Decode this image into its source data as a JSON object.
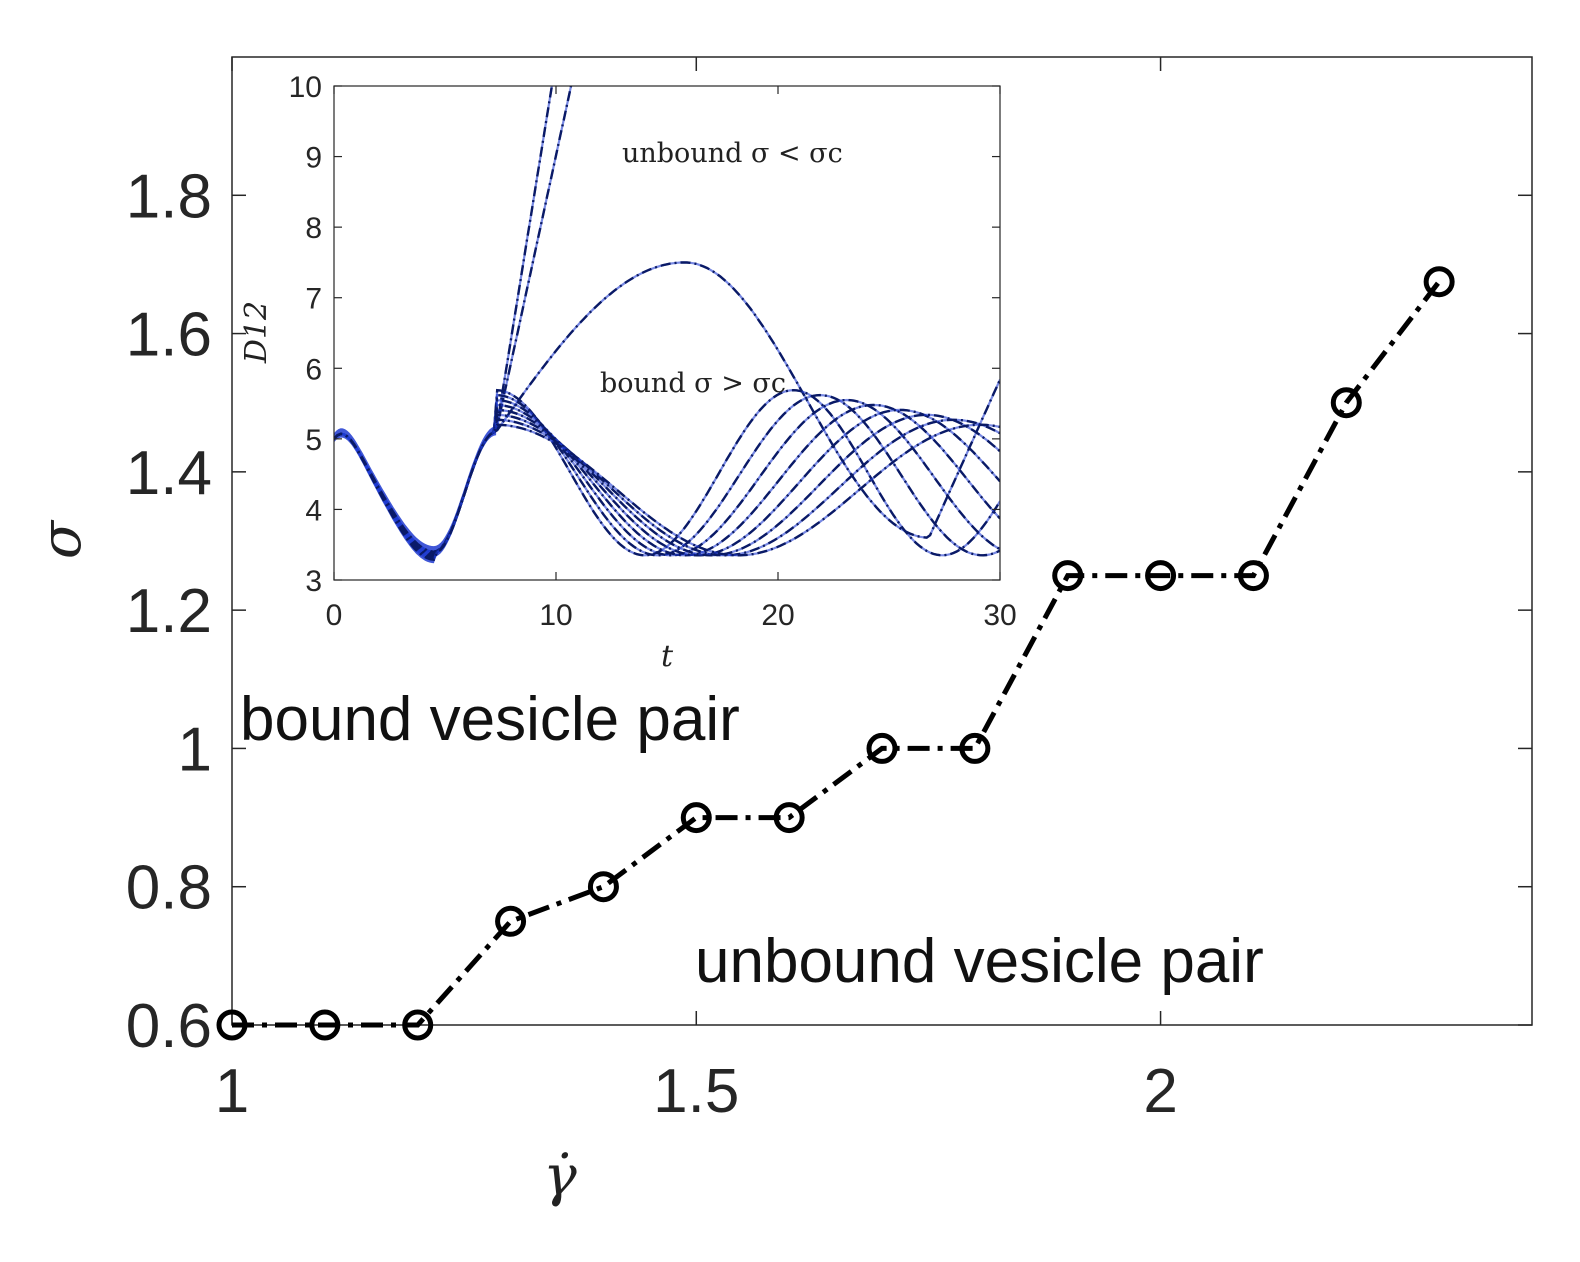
{
  "chart_data": [
    {
      "type": "line",
      "xlabel": "γ̇",
      "ylabel": "σ",
      "xlim": [
        1,
        2.4
      ],
      "ylim": [
        0.6,
        2.0
      ],
      "xticks": [
        "1",
        "1.5",
        "2"
      ],
      "yticks": [
        "0.6",
        "0.8",
        "1",
        "1.2",
        "1.4",
        "1.6",
        "1.8"
      ],
      "annotations": [
        "bound vesicle pair",
        "unbound vesicle pair"
      ],
      "series": [
        {
          "x": [
            1.0,
            1.1,
            1.2,
            1.3,
            1.4,
            1.5,
            1.6,
            1.7,
            1.8,
            1.9,
            2.0,
            2.1,
            2.2,
            2.3
          ],
          "values": [
            0.6,
            0.6,
            0.6,
            0.75,
            0.8,
            0.9,
            0.9,
            1.0,
            1.0,
            1.25,
            1.25,
            1.25,
            1.5,
            1.675
          ],
          "style": "dash-dot",
          "marker": "circle",
          "color": "#000000"
        }
      ],
      "grid": false
    },
    {
      "type": "line",
      "xlabel": "t",
      "ylabel": "D12",
      "xlim": [
        0,
        30
      ],
      "ylim": [
        3,
        10
      ],
      "xticks": [
        "0",
        "10",
        "20",
        "30"
      ],
      "yticks": [
        "3",
        "4",
        "5",
        "6",
        "7",
        "8",
        "9",
        "10"
      ],
      "annotations": [
        "unbound σ < σc",
        "bound σ > σc"
      ],
      "curve_families": {
        "unbound_steep": {
          "count": 2,
          "slope": [
            1.95,
            1.45
          ]
        },
        "unbound_arc": {
          "peak_t": 15.8,
          "peak_value": 7.5
        },
        "bound": {
          "count": 8,
          "first_min_t": [
            14.0,
            14.6,
            15.2,
            15.8,
            16.4,
            17.0,
            17.6,
            18.2
          ],
          "min_value": 3.35
        }
      },
      "colors": {
        "curve": "#0a1a66",
        "fill": "#1e3ad0",
        "overlay": "#000000"
      },
      "grid": false
    }
  ]
}
